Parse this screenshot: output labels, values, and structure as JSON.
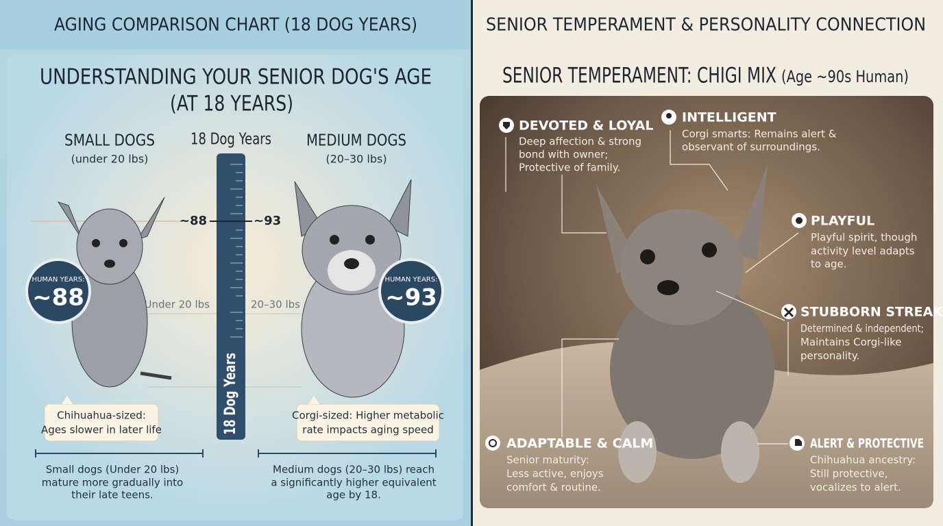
{
  "left": {
    "header": "AGING COMPARISON CHART (18 DOG YEARS)",
    "title_lines": [
      "UNDERSTANDING YOUR SENIOR DOG'S AGE",
      "(AT 18 YEARS)"
    ],
    "center_label": "18 Dog Years",
    "ruler_label": "18 Dog Years",
    "small": {
      "title": "SMALL DOGS",
      "weight": "(under 20 lbs)",
      "badge_caption": "HUMAN YEARS:",
      "badge_value": "~88",
      "ruler_mark": "~88",
      "line_label": "Under 20 lbs",
      "callout_lines": [
        "Chihuahua-sized:",
        "Ages slower in later life"
      ],
      "note_lines": [
        "Small dogs (Under 20 lbs)",
        "mature more gradually into",
        "their late teens."
      ]
    },
    "medium": {
      "title": "MEDIUM DOGS",
      "weight": "(20–30 lbs)",
      "badge_caption": "HUMAN YEARS:",
      "badge_value": "~93",
      "ruler_mark": "~93",
      "line_label": "20–30 lbs",
      "callout_lines": [
        "Corgi-sized: Higher metabolic",
        "rate impacts aging speed"
      ],
      "note_lines": [
        "Medium dogs (20–30 lbs) reach",
        "a significantly higher equivalent",
        "age by 18."
      ]
    }
  },
  "right": {
    "header": "SENIOR TEMPERAMENT & PERSONALITY CONNECTION",
    "title": "SENIOR TEMPERAMENT: CHIGI MIX",
    "title_suffix": "(Age ~90s Human)",
    "traits": [
      {
        "title": "DEVOTED & LOYAL",
        "lines": [
          "Deep affection & strong",
          "bond with owner;",
          "Protective of family."
        ]
      },
      {
        "title": "INTELLIGENT",
        "lines": [
          "Corgi smarts: Remains alert &",
          "observant of surroundings."
        ]
      },
      {
        "title": "PLAYFUL",
        "lines": [
          "Playful spirit, though",
          "activity level adapts",
          "to age."
        ]
      },
      {
        "title": "STUBBORN STREAK",
        "lines": [
          "Determined & independent;",
          "Maintains Corgi-like",
          "personality."
        ]
      },
      {
        "title": "ADAPTABLE & CALM",
        "lines": [
          "Senior maturity:",
          "Less active, enjoys",
          "comfort & routine."
        ]
      },
      {
        "title": "ALERT & PROTECTIVE",
        "lines": [
          "Chihuahua ancestry:",
          "Still protective,",
          "vocalizes to alert."
        ]
      }
    ]
  }
}
